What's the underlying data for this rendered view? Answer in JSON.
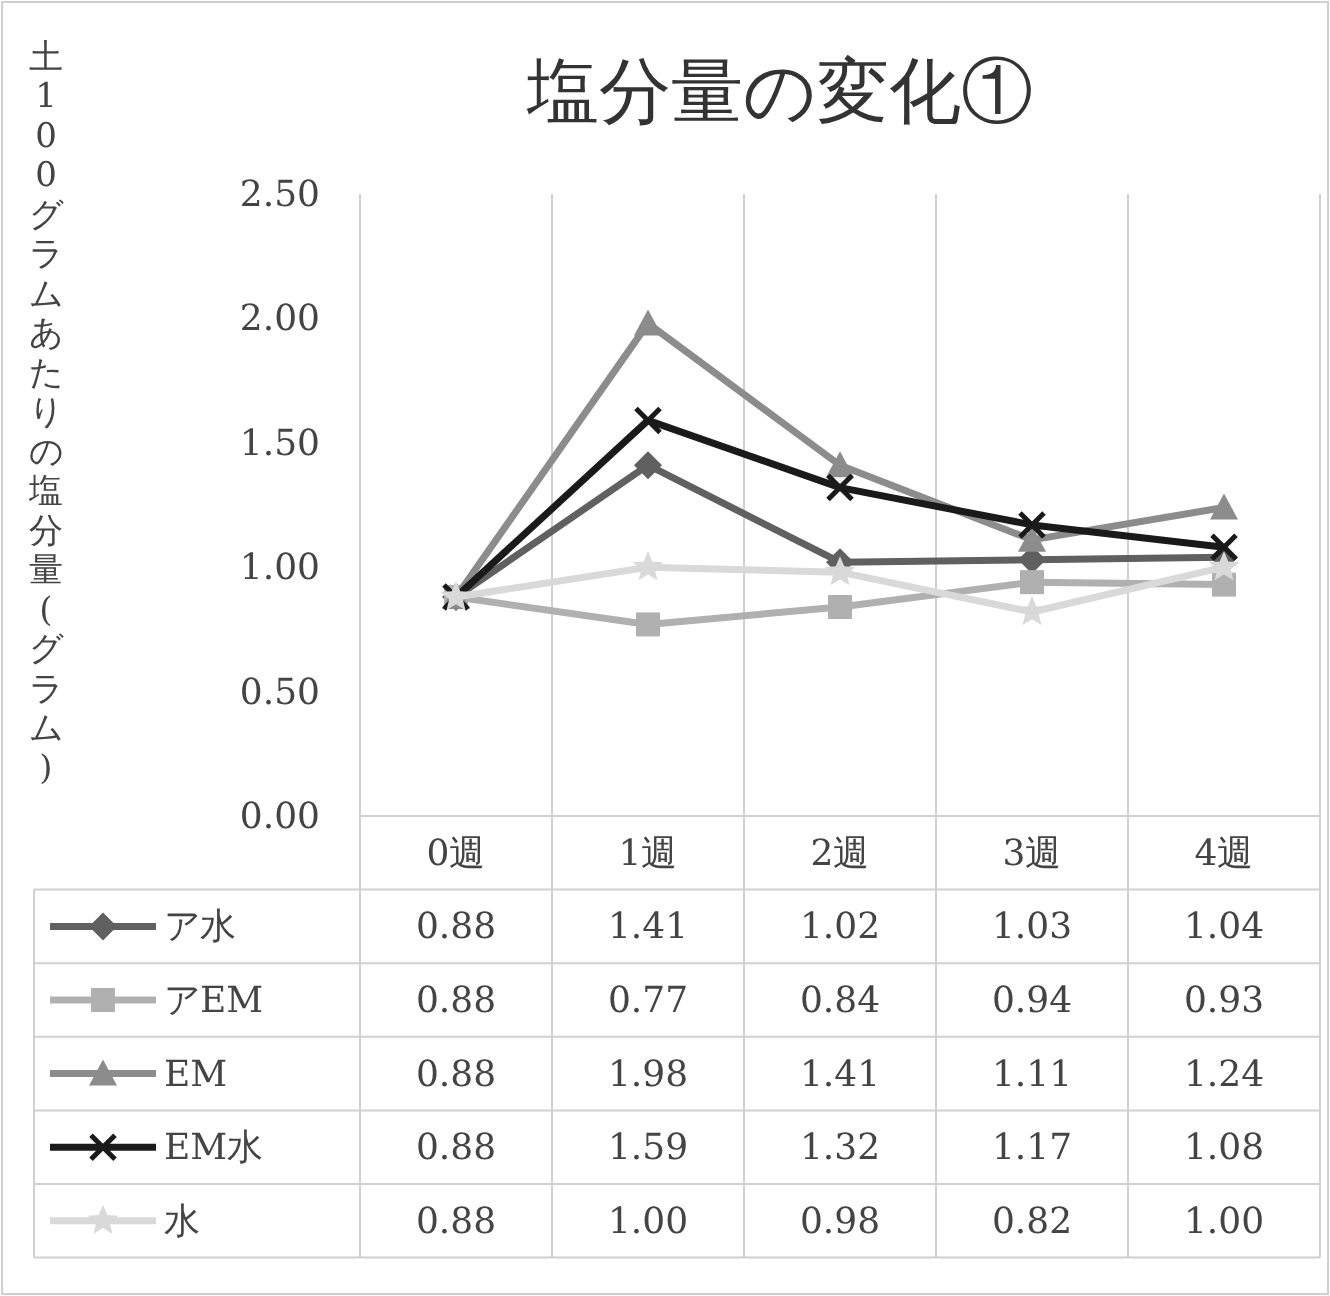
{
  "chart_data": {
    "type": "line",
    "title": "塩分量の変化①",
    "ylabel": "土100グラムあたりの塩分量(グラム)",
    "categories": [
      "0週",
      "1週",
      "2週",
      "3週",
      "4週"
    ],
    "ylim": [
      0,
      2.5
    ],
    "yticks": [
      {
        "value": 0,
        "label": "0.00"
      },
      {
        "value": 0.5,
        "label": "0.50"
      },
      {
        "value": 1,
        "label": "1.00"
      },
      {
        "value": 1.5,
        "label": "1.50"
      },
      {
        "value": 2,
        "label": "2.00"
      },
      {
        "value": 2.5,
        "label": "2.50"
      }
    ],
    "grid": "x",
    "legend": "bottom",
    "series": [
      {
        "name": "ア水",
        "color": "#606060",
        "marker": "diamond",
        "values": [
          0.88,
          1.41,
          1.02,
          1.03,
          1.04
        ],
        "value_labels": [
          "0.88",
          "1.41",
          "1.02",
          "1.03",
          "1.04"
        ]
      },
      {
        "name": "アEM",
        "color": "#b0b0b0",
        "marker": "square",
        "values": [
          0.88,
          0.77,
          0.84,
          0.94,
          0.93
        ],
        "value_labels": [
          "0.88",
          "0.77",
          "0.84",
          "0.94",
          "0.93"
        ]
      },
      {
        "name": "EM",
        "color": "#8c8c8c",
        "marker": "triangle",
        "values": [
          0.88,
          1.98,
          1.41,
          1.11,
          1.24
        ],
        "value_labels": [
          "0.88",
          "1.98",
          "1.41",
          "1.11",
          "1.24"
        ]
      },
      {
        "name": "EM水",
        "color": "#1a1a1a",
        "marker": "cross",
        "values": [
          0.88,
          1.59,
          1.32,
          1.17,
          1.08
        ],
        "value_labels": [
          "0.88",
          "1.59",
          "1.32",
          "1.17",
          "1.08"
        ]
      },
      {
        "name": "水",
        "color": "#d9d9d9",
        "marker": "star",
        "values": [
          0.88,
          1.0,
          0.98,
          0.82,
          1.0
        ],
        "value_labels": [
          "0.88",
          "1.00",
          "0.98",
          "0.82",
          "1.00"
        ]
      }
    ]
  }
}
